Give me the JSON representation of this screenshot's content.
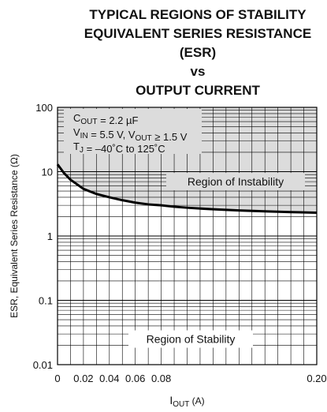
{
  "chart_data": {
    "type": "line",
    "title_lines": [
      "TYPICAL REGIONS OF STABILITY",
      "EQUIVALENT SERIES RESISTANCE",
      "(ESR)",
      "vs",
      "OUTPUT CURRENT"
    ],
    "xlabel": {
      "main": "I",
      "sub": "OUT",
      "unit": " (A)"
    },
    "ylabel": "ESR, Equivalent Series Resistance (Ω)",
    "x_scale": "linear",
    "y_scale": "log",
    "xlim": [
      0,
      0.2
    ],
    "ylim": [
      0.01,
      100
    ],
    "x_ticks": [
      0,
      0.02,
      0.04,
      0.06,
      0.08,
      0.2
    ],
    "x_tick_labels": [
      "0",
      "0.02",
      "0.04",
      "0.06",
      "0.08",
      "0.20"
    ],
    "y_ticks": [
      0.01,
      0.1,
      1,
      10,
      100
    ],
    "y_tick_labels": [
      "0.01",
      "0.1",
      "1",
      "10",
      "100"
    ],
    "grid": true,
    "conditions": [
      {
        "parts": [
          [
            "C",
            "n"
          ],
          [
            "OUT",
            "sub"
          ],
          [
            " = 2.2 µF",
            "n"
          ]
        ]
      },
      {
        "parts": [
          [
            "V",
            "n"
          ],
          [
            "IN",
            "sub"
          ],
          [
            " = 5.5 V, V",
            "n"
          ],
          [
            "OUT",
            "sub"
          ],
          [
            " ≥ 1.5 V",
            "n"
          ]
        ]
      },
      {
        "parts": [
          [
            "T",
            "n"
          ],
          [
            "J",
            "sub"
          ],
          [
            " = –40˚C to 125˚C",
            "n"
          ]
        ]
      }
    ],
    "series": [
      {
        "x": [
          0,
          0.005,
          0.01,
          0.02,
          0.03,
          0.04,
          0.05,
          0.06,
          0.07,
          0.08,
          0.09,
          0.1,
          0.12,
          0.14,
          0.16,
          0.18,
          0.2
        ],
        "y": [
          13,
          9.5,
          7.5,
          5.4,
          4.5,
          4.0,
          3.6,
          3.3,
          3.1,
          3.0,
          2.85,
          2.75,
          2.6,
          2.5,
          2.42,
          2.35,
          2.3
        ]
      }
    ],
    "regions": {
      "instability": {
        "label": "Region of Instability",
        "fill": "#dcdcdc"
      },
      "stability": {
        "label": "Region of Stability",
        "fill": "#ffffff"
      }
    },
    "colors": {
      "curve": "#000000",
      "grid": "#000000",
      "shade": "#dcdcdc"
    }
  }
}
